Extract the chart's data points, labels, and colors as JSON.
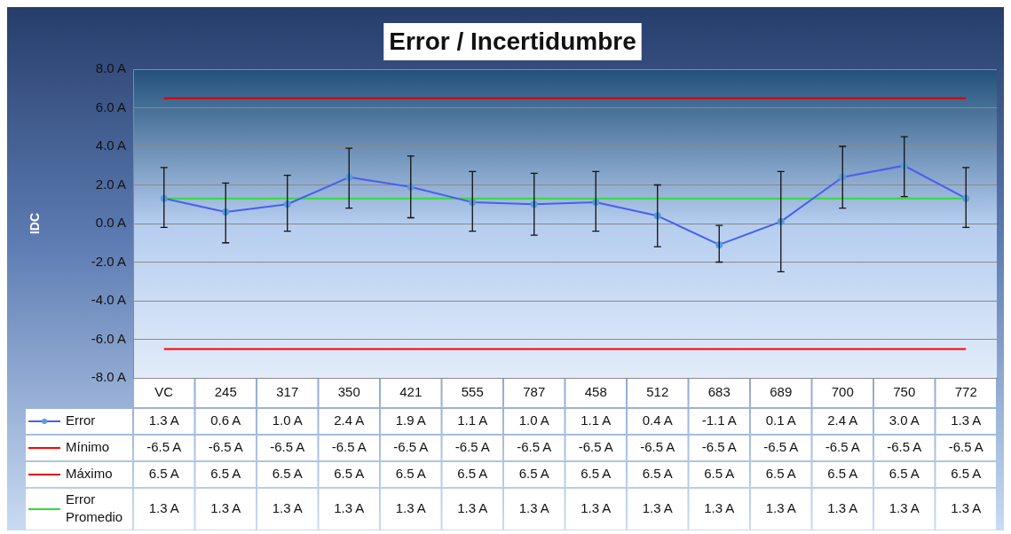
{
  "chart_data": {
    "type": "line",
    "title": "Error / Incertidumbre",
    "ylabel": "IDC",
    "categories": [
      "VC",
      "245",
      "317",
      "350",
      "421",
      "555",
      "787",
      "458",
      "512",
      "683",
      "689",
      "700",
      "750",
      "772"
    ],
    "ylim": [
      -8,
      8
    ],
    "yticks": [
      {
        "value": -8,
        "label": "-8.0 A"
      },
      {
        "value": -6,
        "label": "-6.0 A"
      },
      {
        "value": -4,
        "label": "-4.0 A"
      },
      {
        "value": -2,
        "label": "-2.0 A"
      },
      {
        "value": 0,
        "label": "0.0 A"
      },
      {
        "value": 2,
        "label": "2.0 A"
      },
      {
        "value": 4,
        "label": "4.0 A"
      },
      {
        "value": 6,
        "label": "6.0 A"
      },
      {
        "value": 8,
        "label": "8.0 A"
      }
    ],
    "grid": "y",
    "legend": "bottom",
    "series": [
      {
        "name": "Error",
        "color": "#4a5ef0",
        "marker": "circle",
        "values": [
          1.3,
          0.6,
          1.0,
          2.4,
          1.9,
          1.1,
          1.0,
          1.1,
          0.4,
          -1.1,
          0.1,
          2.4,
          3.0,
          1.3
        ],
        "errors": [
          [
            -0.2,
            2.9
          ],
          [
            -1.0,
            2.1
          ],
          [
            -0.4,
            2.5
          ],
          [
            0.8,
            3.9
          ],
          [
            0.3,
            3.5
          ],
          [
            -0.4,
            2.7
          ],
          [
            -0.6,
            2.6
          ],
          [
            -0.4,
            2.7
          ],
          [
            -1.2,
            2.0
          ],
          [
            -2.0,
            -0.1
          ],
          [
            -2.5,
            2.7
          ],
          [
            0.8,
            4.0
          ],
          [
            1.4,
            4.5
          ],
          [
            -0.2,
            2.9
          ]
        ],
        "value_labels": [
          "1.3 A",
          "0.6 A",
          "1.0 A",
          "2.4 A",
          "1.9 A",
          "1.1 A",
          "1.0 A",
          "1.1 A",
          "0.4 A",
          "-1.1 A",
          "0.1 A",
          "2.4 A",
          "3.0 A",
          "1.3 A"
        ]
      },
      {
        "name": "Mínimo",
        "color": "#ff0000",
        "marker": "none",
        "values": [
          -6.5,
          -6.5,
          -6.5,
          -6.5,
          -6.5,
          -6.5,
          -6.5,
          -6.5,
          -6.5,
          -6.5,
          -6.5,
          -6.5,
          -6.5,
          -6.5
        ],
        "value_labels": [
          "-6.5 A",
          "-6.5 A",
          "-6.5 A",
          "-6.5 A",
          "-6.5 A",
          "-6.5 A",
          "-6.5 A",
          "-6.5 A",
          "-6.5 A",
          "-6.5 A",
          "-6.5 A",
          "-6.5 A",
          "-6.5 A",
          "-6.5 A"
        ]
      },
      {
        "name": "Máximo",
        "color": "#dd0000",
        "marker": "none",
        "values": [
          6.5,
          6.5,
          6.5,
          6.5,
          6.5,
          6.5,
          6.5,
          6.5,
          6.5,
          6.5,
          6.5,
          6.5,
          6.5,
          6.5
        ],
        "value_labels": [
          "6.5 A",
          "6.5 A",
          "6.5 A",
          "6.5 A",
          "6.5 A",
          "6.5 A",
          "6.5 A",
          "6.5 A",
          "6.5 A",
          "6.5 A",
          "6.5 A",
          "6.5 A",
          "6.5 A",
          "6.5 A"
        ]
      },
      {
        "name": "Error Promedio",
        "color": "#33dd33",
        "marker": "none",
        "values": [
          1.3,
          1.3,
          1.3,
          1.3,
          1.3,
          1.3,
          1.3,
          1.3,
          1.3,
          1.3,
          1.3,
          1.3,
          1.3,
          1.3
        ],
        "value_labels": [
          "1.3 A",
          "1.3 A",
          "1.3 A",
          "1.3 A",
          "1.3 A",
          "1.3 A",
          "1.3 A",
          "1.3 A",
          "1.3 A",
          "1.3 A",
          "1.3 A",
          "1.3 A",
          "1.3 A",
          "1.3 A"
        ]
      }
    ]
  }
}
